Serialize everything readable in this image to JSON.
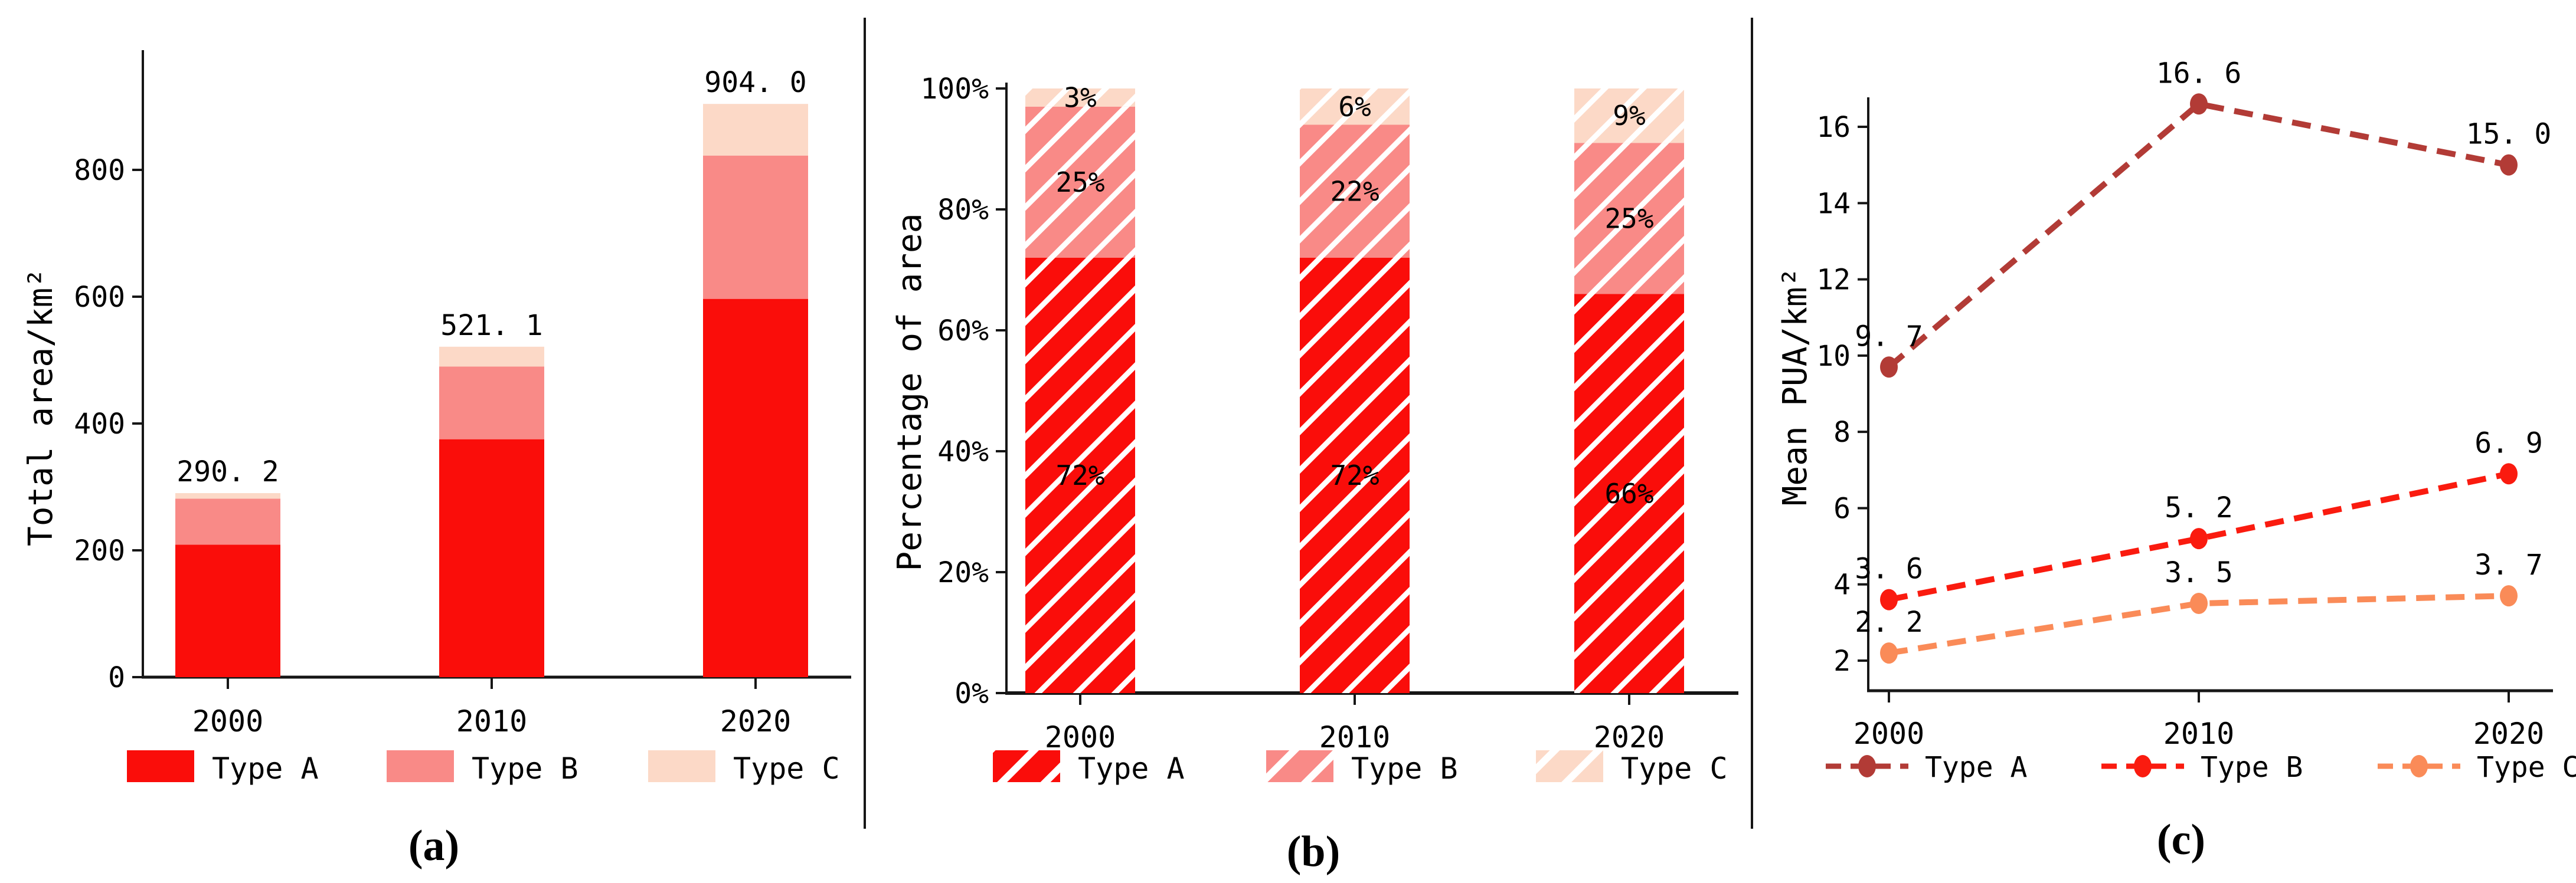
{
  "figure": {
    "captions": {
      "a": "(a)",
      "b": "(b)",
      "c": "(c)"
    }
  },
  "colors": {
    "type_a_fill": "#FA0D0A",
    "type_b_fill": "#F98A87",
    "type_c_fill": "#FCD9C7",
    "type_a_line": "#B23B36",
    "type_b_line": "#FA1B0F",
    "type_c_line": "#FA8B58",
    "hatch": "#FFFFFF",
    "axis": "#161616",
    "text": "#000000"
  },
  "chart_data": [
    {
      "id": "a",
      "type": "bar",
      "stacked": true,
      "title": "",
      "xlabel": "",
      "ylabel": "Total area/km²",
      "categories": [
        "2000",
        "2010",
        "2020"
      ],
      "series": [
        {
          "name": "Type A",
          "values": [
            208.9,
            375.2,
            596.6
          ]
        },
        {
          "name": "Type B",
          "values": [
            72.6,
            114.6,
            226.0
          ]
        },
        {
          "name": "Type C",
          "values": [
            8.7,
            31.3,
            81.4
          ]
        }
      ],
      "totals": [
        290.2,
        521.1,
        904.0
      ],
      "total_labels": [
        "290. 2",
        "521. 1",
        "904. 0"
      ],
      "yticks": [
        0,
        200,
        400,
        600,
        800
      ],
      "ytick_labels": [
        "0",
        "200",
        "400",
        "600",
        "800"
      ],
      "ylim": [
        0,
        990
      ],
      "grid": false,
      "legend": [
        "Type A",
        "Type B",
        "Type C"
      ],
      "legend_position": "bottom"
    },
    {
      "id": "b",
      "type": "bar",
      "stacked": true,
      "percent": true,
      "hatch": "/",
      "title": "",
      "xlabel": "",
      "ylabel": "Percentage of area",
      "categories": [
        "2000",
        "2010",
        "2020"
      ],
      "series": [
        {
          "name": "Type A",
          "values": [
            72,
            72,
            66
          ],
          "labels": [
            "72%",
            "72%",
            "66%"
          ]
        },
        {
          "name": "Type B",
          "values": [
            25,
            22,
            25
          ],
          "labels": [
            "25%",
            "22%",
            "25%"
          ]
        },
        {
          "name": "Type C",
          "values": [
            3,
            6,
            9
          ],
          "labels": [
            "3%",
            "6%",
            "9%"
          ]
        }
      ],
      "yticks": [
        0,
        20,
        40,
        60,
        80,
        100
      ],
      "ytick_labels": [
        "0%",
        "20%",
        "40%",
        "60%",
        "80%",
        "100%"
      ],
      "ylim": [
        0,
        100
      ],
      "grid": false,
      "legend": [
        "Type A",
        "Type B",
        "Type C"
      ],
      "legend_position": "bottom"
    },
    {
      "id": "c",
      "type": "line",
      "line_style": "dashed",
      "marker": "circle",
      "title": "",
      "xlabel": "",
      "ylabel": "Mean PUA/km²",
      "x": [
        "2000",
        "2010",
        "2020"
      ],
      "series": [
        {
          "name": "Type A",
          "values": [
            9.7,
            16.6,
            15.0
          ],
          "labels": [
            "9. 7",
            "16. 6",
            "15. 0"
          ]
        },
        {
          "name": "Type B",
          "values": [
            3.6,
            5.2,
            6.9
          ],
          "labels": [
            "3. 6",
            "5. 2",
            "6. 9"
          ]
        },
        {
          "name": "Type C",
          "values": [
            2.2,
            3.5,
            3.7
          ],
          "labels": [
            "2. 2",
            "3. 5",
            "3. 7"
          ]
        }
      ],
      "yticks": [
        2,
        4,
        6,
        8,
        10,
        12,
        14,
        16
      ],
      "ytick_labels": [
        "2",
        "4",
        "6",
        "8",
        "10",
        "12",
        "14",
        "16"
      ],
      "ylim": [
        1.2,
        17.2
      ],
      "grid": false,
      "legend": [
        "Type A",
        "Type B",
        "Type C"
      ],
      "legend_position": "bottom"
    }
  ]
}
